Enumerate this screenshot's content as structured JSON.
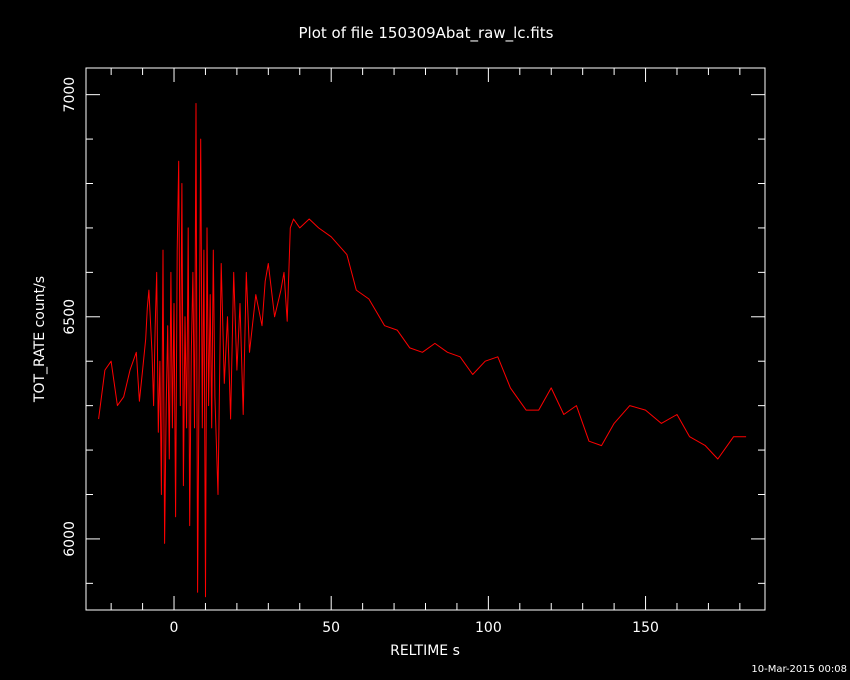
{
  "chart_data": {
    "type": "line",
    "title": "Plot of file 150309Abat_raw_lc.fits",
    "xlabel": "RELTIME  s",
    "ylabel": "TOT_RATE  count/s",
    "xlim": [
      -28,
      188
    ],
    "ylim": [
      5840,
      7060
    ],
    "x_ticks": [
      0,
      50,
      100,
      150
    ],
    "y_ticks": [
      6000,
      6500,
      7000
    ],
    "grid": false,
    "line_color": "#ff0000",
    "series": [
      {
        "x": [
          -24.0,
          -22.0,
          -20.0,
          -18.0,
          -16.0,
          -14.0,
          -12.0,
          -11.0,
          -10.0,
          -9.0,
          -8.5,
          -8.0,
          -7.0,
          -6.5,
          -6.0,
          -5.5,
          -5.0,
          -4.5,
          -4.0,
          -3.5,
          -3.0,
          -2.5,
          -2.0,
          -1.5,
          -1.0,
          -0.5,
          0.0,
          0.5,
          1.0,
          1.5,
          2.0,
          2.5,
          3.0,
          3.5,
          4.0,
          4.5,
          5.0,
          5.5,
          6.0,
          6.5,
          7.0,
          7.5,
          8.0,
          8.5,
          9.0,
          9.5,
          10.0,
          10.5,
          11.0,
          11.5,
          12.0,
          12.5,
          13.0,
          14.0,
          15.0,
          16.0,
          17.0,
          18.0,
          19.0,
          20.0,
          21.0,
          22.0,
          23.0,
          24.0,
          26.0,
          28.0,
          29.0,
          30.0,
          32.0,
          34.0,
          35.0,
          36.0,
          37.0,
          38.0,
          40.0,
          43.0,
          46.0,
          50.0,
          55.0,
          58.0,
          62.0,
          67.0,
          71.0,
          75.0,
          79.0,
          83.0,
          87.0,
          91.0,
          95.0,
          99.0,
          103.0,
          107.0,
          112.0,
          116.0,
          120.0,
          124.0,
          128.0,
          132.0,
          136.0,
          140.0,
          145.0,
          150.0,
          155.0,
          160.0,
          164.0,
          169.0,
          173.0,
          178.0,
          182.0
        ],
        "y": [
          6270,
          6380,
          6400,
          6300,
          6320,
          6380,
          6420,
          6310,
          6380,
          6450,
          6520,
          6560,
          6420,
          6300,
          6480,
          6600,
          6240,
          6400,
          6100,
          6650,
          5990,
          6300,
          6480,
          6180,
          6600,
          6250,
          6530,
          6050,
          6650,
          6850,
          6300,
          6800,
          6120,
          6500,
          6250,
          6700,
          6030,
          6420,
          6600,
          6250,
          6980,
          5880,
          6400,
          6900,
          6250,
          6650,
          5870,
          6700,
          6300,
          6550,
          6250,
          6650,
          6320,
          6100,
          6620,
          6350,
          6500,
          6270,
          6600,
          6380,
          6530,
          6280,
          6600,
          6420,
          6550,
          6480,
          6580,
          6620,
          6500,
          6560,
          6600,
          6490,
          6700,
          6720,
          6700,
          6720,
          6700,
          6680,
          6640,
          6560,
          6540,
          6480,
          6470,
          6430,
          6420,
          6440,
          6420,
          6410,
          6370,
          6400,
          6410,
          6340,
          6290,
          6290,
          6340,
          6280,
          6300,
          6220,
          6210,
          6260,
          6300,
          6290,
          6260,
          6280,
          6230,
          6210,
          6180,
          6230,
          6230
        ]
      }
    ]
  },
  "footer": {
    "timestamp": "10-Mar-2015 00:08"
  }
}
